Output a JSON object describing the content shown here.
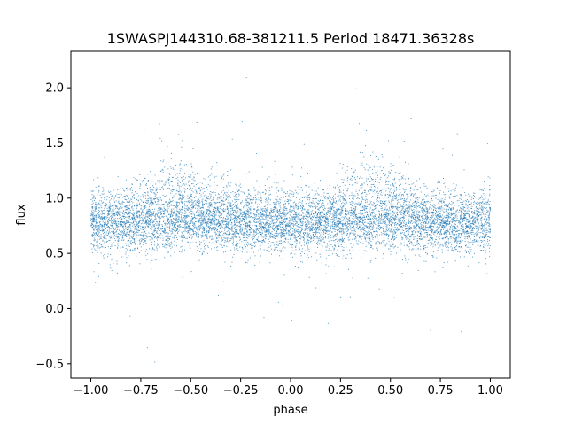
{
  "chart_data": {
    "type": "scatter",
    "title": "1SWASPJ144310.68-381211.5 Period 18471.36328s",
    "xlabel": "phase",
    "ylabel": "flux",
    "xlim": [
      -1.1,
      1.1
    ],
    "ylim": [
      -0.63,
      2.33
    ],
    "xticks": [
      -1.0,
      -0.75,
      -0.5,
      -0.25,
      0.0,
      0.25,
      0.5,
      0.75,
      1.0
    ],
    "xtick_labels": [
      "−1.00",
      "−0.75",
      "−0.50",
      "−0.25",
      "0.00",
      "0.25",
      "0.50",
      "0.75",
      "1.00"
    ],
    "yticks": [
      -0.5,
      0.0,
      0.5,
      1.0,
      1.5,
      2.0
    ],
    "ytick_labels": [
      "−0.5",
      "0.0",
      "0.5",
      "1.0",
      "1.5",
      "2.0"
    ],
    "grid": false,
    "marker_color": "#1f77b4",
    "series": [
      {
        "x_range": [
          -1.0,
          1.0
        ],
        "y_range": [
          -0.5,
          2.2
        ],
        "profile_phase": [
          -1.0,
          -0.9,
          -0.8,
          -0.7,
          -0.6,
          -0.5,
          -0.4,
          -0.3,
          -0.2,
          -0.1,
          0.0,
          0.1,
          0.2,
          0.3,
          0.4,
          0.5,
          0.6,
          0.7,
          0.8,
          0.9,
          1.0
        ],
        "profile_flux": [
          0.78,
          0.8,
          0.86,
          1.0,
          1.08,
          1.02,
          0.92,
          0.85,
          0.8,
          0.77,
          0.76,
          0.78,
          0.86,
          1.0,
          1.08,
          1.02,
          0.92,
          0.85,
          0.8,
          0.78,
          0.78
        ]
      }
    ]
  }
}
